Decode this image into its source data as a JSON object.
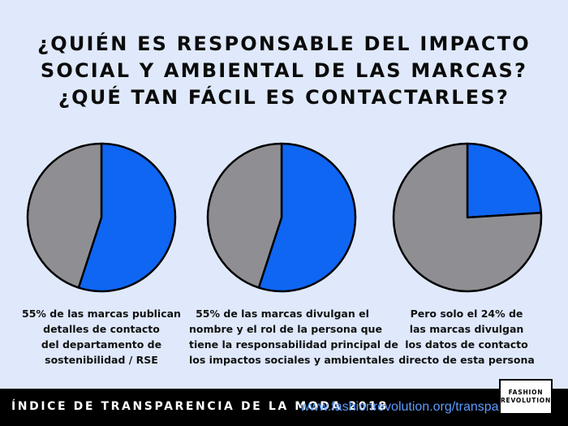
{
  "title": {
    "lines": [
      "¿QUIÉN ES RESPONSABLE DEL IMPACTO",
      "SOCIAL Y AMBIENTAL DE LAS MARCAS?",
      "¿QUÉ TAN FÁCIL ES CONTACTARLES?"
    ]
  },
  "colors": {
    "highlight": "#0f66f2",
    "rest": "#8f8f93",
    "background": "#dfe9fb",
    "outline": "#000000"
  },
  "chart_data": [
    {
      "type": "pie",
      "values": [
        55,
        45
      ],
      "caption": [
        "55% de las marcas publican",
        "detalles de contacto",
        "del departamento de",
        "sostenibilidad / RSE"
      ]
    },
    {
      "type": "pie",
      "values": [
        55,
        45
      ],
      "caption": [
        "55% de las marcas divulgan el",
        "nombre y el rol de la persona que",
        "tiene la responsabilidad principal de",
        "los impactos sociales y ambientales"
      ]
    },
    {
      "type": "pie",
      "values": [
        24,
        76
      ],
      "caption": [
        "Pero solo el 24% de",
        "las marcas divulgan",
        "los datos de contacto",
        "directo de esta persona"
      ]
    }
  ],
  "footer": {
    "title": "ÍNDICE DE TRANSPARENCIA DE LA MODA 2018",
    "url": "www.fashionrevolution.org/transparency"
  },
  "logo": {
    "lines": [
      "FASHION",
      "REVOLUTION"
    ]
  }
}
